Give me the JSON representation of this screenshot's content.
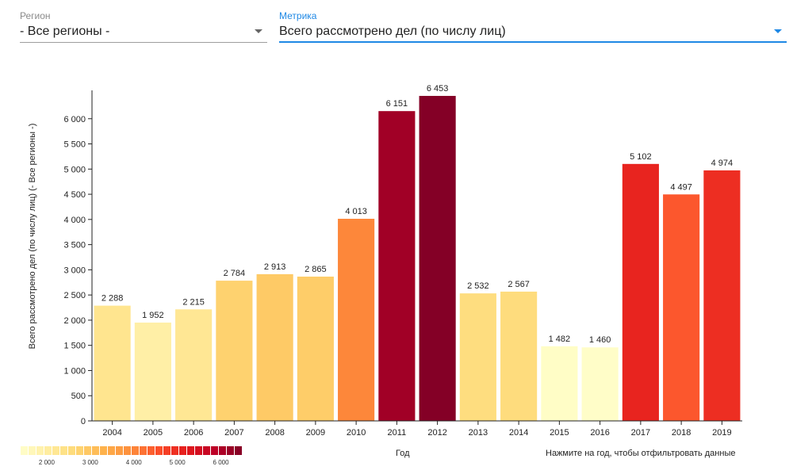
{
  "filters": {
    "region": {
      "label": "Регион",
      "value": "- Все регионы -"
    },
    "metric": {
      "label": "Метрика",
      "value": "Всего рассмотрено дел (по числу лиц)"
    }
  },
  "colors": {
    "scale": [
      "#ffffcc",
      "#ffeda0",
      "#fed976",
      "#feb24c",
      "#fd8d3c",
      "#fc4e2a",
      "#e31a1c",
      "#bd0026",
      "#800026"
    ],
    "scale_min": 1400,
    "scale_max": 6500
  },
  "chart_data": {
    "type": "bar",
    "title": "",
    "xlabel": "Год",
    "ylabel": "Всего рассмотрено дел (по числу лиц) (- Все регионы -)",
    "categories": [
      "2004",
      "2005",
      "2006",
      "2007",
      "2008",
      "2009",
      "2010",
      "2011",
      "2012",
      "2013",
      "2014",
      "2015",
      "2016",
      "2017",
      "2018",
      "2019"
    ],
    "values": [
      2288,
      1952,
      2215,
      2784,
      2913,
      2865,
      4013,
      6151,
      6453,
      2532,
      2567,
      1482,
      1460,
      5102,
      4497,
      4974
    ],
    "value_labels": [
      "2 288",
      "1 952",
      "2 215",
      "2 784",
      "2 913",
      "2 865",
      "4 013",
      "6 151",
      "6 453",
      "2 532",
      "2 567",
      "1 482",
      "1 460",
      "5 102",
      "4 497",
      "4 974"
    ],
    "yticks": [
      0,
      500,
      1000,
      1500,
      2000,
      2500,
      3000,
      3500,
      4000,
      4500,
      5000,
      5500,
      6000
    ],
    "ytick_labels": [
      "0",
      "500",
      "1 000",
      "1 500",
      "2 000",
      "2 500",
      "3 000",
      "3 500",
      "4 000",
      "4 500",
      "5 000",
      "5 500",
      "6 000"
    ],
    "ylim": [
      0,
      6500
    ],
    "grid": false,
    "legend": {
      "type": "color-scale",
      "placement": "bottom-left",
      "tick_labels": [
        "2 000",
        "3 000",
        "4 000",
        "5 000",
        "6 000"
      ],
      "tick_values": [
        2000,
        3000,
        4000,
        5000,
        6000
      ]
    }
  },
  "hint": "Нажмите на год, чтобы отфильтровать данные"
}
